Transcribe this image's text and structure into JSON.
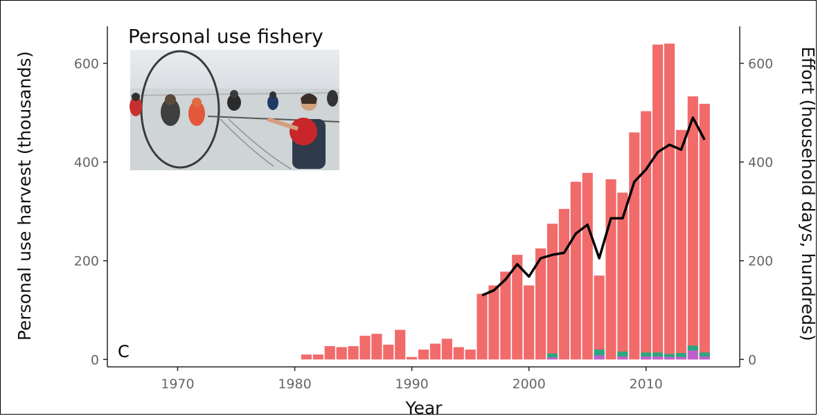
{
  "chart_data": {
    "type": "bar",
    "title": "Personal use fishery",
    "panel_label": "C",
    "xlabel": "Year",
    "ylabel_left": "Personal use harvest (thousands)",
    "ylabel_right": "Effort (household days, hundreds)",
    "xlim": [
      1964,
      2018
    ],
    "ylim": [
      -15,
      675
    ],
    "x_ticks": [
      1970,
      1980,
      1990,
      2000,
      2010
    ],
    "y_ticks": [
      0,
      200,
      400,
      600
    ],
    "grid": false,
    "colors": {
      "harvest": "#f16b6b",
      "secondary_a": "#2aa77f",
      "secondary_b": "#c061cb",
      "effort": "#000000"
    },
    "series": [
      {
        "name": "harvest",
        "x": [
          1981,
          1982,
          1983,
          1984,
          1985,
          1986,
          1987,
          1988,
          1989,
          1990,
          1991,
          1992,
          1993,
          1994,
          1995,
          1996,
          1997,
          1998,
          1999,
          2000,
          2001,
          2002,
          2003,
          2004,
          2005,
          2006,
          2007,
          2008,
          2009,
          2010,
          2011,
          2012,
          2013,
          2014,
          2015
        ],
        "values": [
          10,
          10,
          27,
          25,
          27,
          48,
          52,
          30,
          60,
          5,
          20,
          32,
          42,
          25,
          20,
          133,
          150,
          178,
          212,
          150,
          225,
          275,
          305,
          360,
          378,
          170,
          365,
          338,
          460,
          503,
          638,
          640,
          465,
          533,
          518
        ]
      },
      {
        "name": "secondary_a",
        "x": [
          2002,
          2006,
          2008,
          2010,
          2011,
          2012,
          2013,
          2014,
          2015
        ],
        "values": [
          8,
          12,
          10,
          8,
          8,
          6,
          8,
          10,
          8
        ]
      },
      {
        "name": "secondary_b",
        "x": [
          2002,
          2006,
          2008,
          2010,
          2011,
          2012,
          2013,
          2014,
          2015
        ],
        "values": [
          4,
          8,
          6,
          6,
          6,
          5,
          5,
          18,
          6
        ]
      },
      {
        "name": "effort",
        "type": "line",
        "x": [
          1996,
          1997,
          1998,
          1999,
          2000,
          2001,
          2002,
          2003,
          2004,
          2005,
          2006,
          2007,
          2008,
          2009,
          2010,
          2011,
          2012,
          2013,
          2014,
          2015
        ],
        "values": [
          130,
          140,
          162,
          193,
          168,
          205,
          212,
          216,
          255,
          273,
          205,
          286,
          286,
          360,
          385,
          420,
          435,
          425,
          490,
          445
        ]
      }
    ]
  },
  "inset_photo": {
    "description_icon": "photo-fishermen-dipnetting"
  }
}
